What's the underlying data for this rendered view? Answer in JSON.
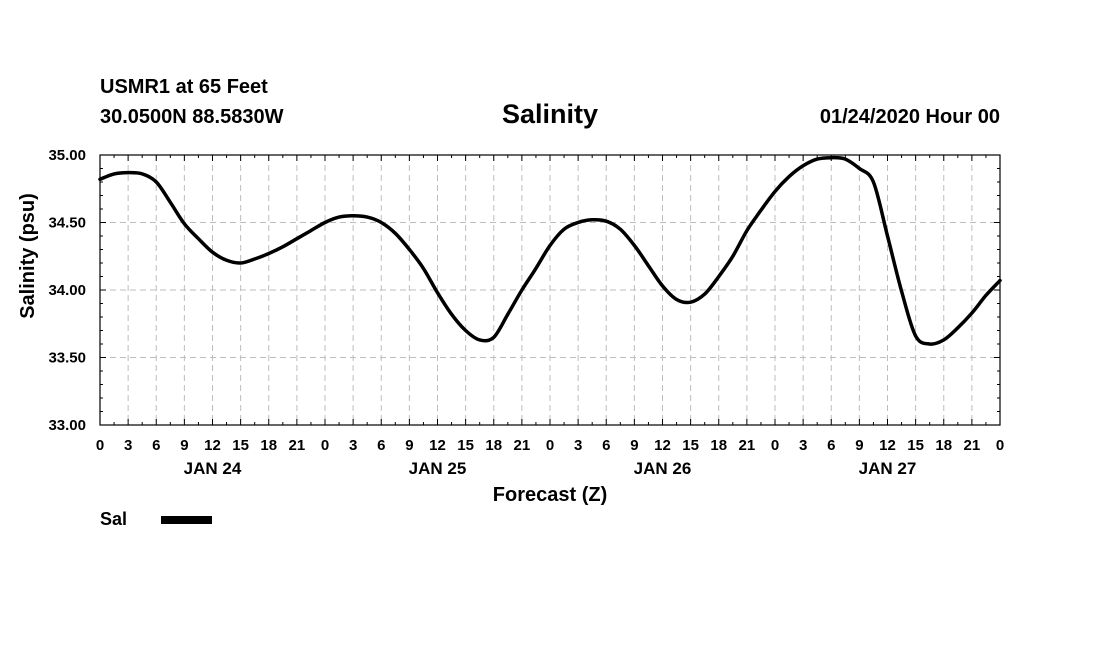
{
  "header": {
    "station": "USMR1 at 65 Feet",
    "coords": "30.0500N 88.5830W",
    "datestamp": "01/24/2020 Hour 00"
  },
  "legend": {
    "label": "Sal"
  },
  "chart_data": {
    "type": "line",
    "title": "Salinity",
    "xlabel": "Forecast (Z)",
    "ylabel": "Salinity (psu)",
    "ylim": [
      33.0,
      35.0
    ],
    "yticks": [
      "33.00",
      "33.50",
      "34.00",
      "34.50",
      "35.00"
    ],
    "xlim_hours": [
      0,
      96
    ],
    "xtick_labels": [
      "0",
      "3",
      "6",
      "9",
      "12",
      "15",
      "18",
      "21",
      "0",
      "3",
      "6",
      "9",
      "12",
      "15",
      "18",
      "21",
      "0",
      "3",
      "6",
      "9",
      "12",
      "15",
      "18",
      "21",
      "0",
      "3",
      "6",
      "9",
      "12",
      "15",
      "18",
      "21",
      "0"
    ],
    "day_labels": [
      {
        "label": "JAN 24",
        "hour": 12
      },
      {
        "label": "JAN 25",
        "hour": 36
      },
      {
        "label": "JAN 26",
        "hour": 60
      },
      {
        "label": "JAN 27",
        "hour": 84
      }
    ],
    "grid": true,
    "series": [
      {
        "name": "Sal",
        "x": [
          0,
          1.5,
          3,
          4.5,
          6,
          7.5,
          9,
          10.5,
          12,
          13.5,
          15,
          16.5,
          18,
          19.5,
          21,
          22.5,
          24,
          25.5,
          27,
          28.5,
          30,
          31.5,
          33,
          34.5,
          36,
          37.5,
          39,
          40.5,
          42,
          43.5,
          45,
          46.5,
          48,
          49.5,
          51,
          52.5,
          54,
          55.5,
          57,
          58.5,
          60,
          61.5,
          63,
          64.5,
          66,
          67.5,
          69,
          70.5,
          72,
          73.5,
          75,
          76.5,
          78,
          79.5,
          81,
          82.5,
          84,
          85.5,
          87,
          88.5,
          90,
          91.5,
          93,
          94.5,
          96
        ],
        "values": [
          34.82,
          34.86,
          34.87,
          34.86,
          34.8,
          34.65,
          34.49,
          34.38,
          34.28,
          34.22,
          34.2,
          34.23,
          34.27,
          34.32,
          34.38,
          34.44,
          34.5,
          34.54,
          34.55,
          34.54,
          34.5,
          34.42,
          34.3,
          34.16,
          33.98,
          33.82,
          33.7,
          33.63,
          33.65,
          33.82,
          34.0,
          34.16,
          34.33,
          34.45,
          34.5,
          34.52,
          34.51,
          34.45,
          34.33,
          34.18,
          34.03,
          33.93,
          33.91,
          33.97,
          34.1,
          34.25,
          34.44,
          34.59,
          34.73,
          34.84,
          34.92,
          34.97,
          34.98,
          34.97,
          34.9,
          34.8,
          34.4,
          33.99,
          33.66,
          33.6,
          33.63,
          33.72,
          33.83,
          33.96,
          34.07
        ]
      }
    ]
  }
}
